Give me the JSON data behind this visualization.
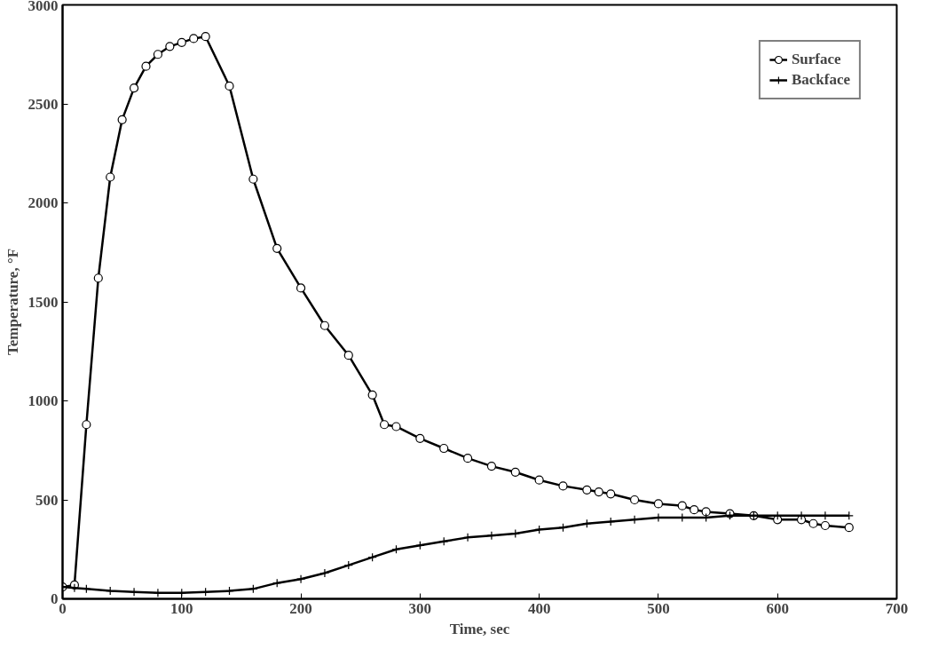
{
  "chart_data": {
    "type": "line",
    "xlabel": "Time, sec",
    "ylabel": "Temperature, °F",
    "xlim": [
      0,
      700
    ],
    "ylim": [
      0,
      3000
    ],
    "xticks": [
      0,
      100,
      200,
      300,
      400,
      500,
      600,
      700
    ],
    "yticks": [
      0,
      500,
      1000,
      1500,
      2000,
      2500,
      3000
    ],
    "grid": false,
    "legend": "top right",
    "line_style": "solid",
    "series": [
      {
        "name": "Surface",
        "color": "#000000",
        "marker": "circle",
        "x": [
          0,
          10,
          20,
          30,
          40,
          50,
          60,
          70,
          80,
          90,
          100,
          110,
          120,
          140,
          160,
          180,
          200,
          220,
          240,
          260,
          270,
          280,
          300,
          320,
          340,
          360,
          380,
          400,
          420,
          440,
          450,
          460,
          480,
          500,
          520,
          530,
          540,
          560,
          580,
          600,
          620,
          630,
          640,
          660
        ],
        "values": [
          60,
          70,
          880,
          1620,
          2130,
          2420,
          2580,
          2690,
          2750,
          2790,
          2810,
          2830,
          2840,
          2590,
          2120,
          1770,
          1570,
          1380,
          1230,
          1030,
          880,
          870,
          810,
          760,
          710,
          670,
          640,
          600,
          570,
          550,
          540,
          530,
          500,
          480,
          470,
          450,
          440,
          430,
          420,
          400,
          400,
          380,
          370,
          360
        ]
      },
      {
        "name": "Backface",
        "color": "#000000",
        "marker": "cross",
        "x": [
          0,
          10,
          20,
          40,
          60,
          80,
          100,
          120,
          140,
          160,
          180,
          200,
          220,
          240,
          260,
          280,
          300,
          320,
          340,
          360,
          380,
          400,
          420,
          440,
          460,
          480,
          500,
          520,
          540,
          560,
          580,
          600,
          620,
          640,
          660
        ],
        "values": [
          60,
          55,
          50,
          40,
          35,
          30,
          30,
          35,
          40,
          50,
          80,
          100,
          130,
          170,
          210,
          250,
          270,
          290,
          310,
          320,
          330,
          350,
          360,
          380,
          390,
          400,
          410,
          410,
          410,
          420,
          420,
          420,
          420,
          420,
          420
        ]
      }
    ]
  }
}
